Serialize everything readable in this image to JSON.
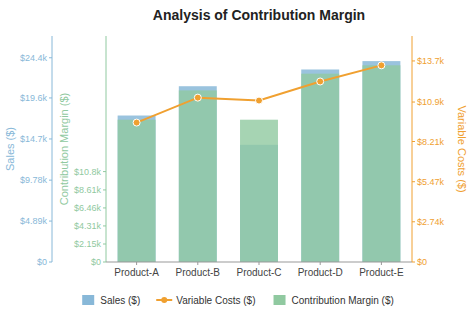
{
  "chart_data": {
    "type": "bar",
    "title": "Analysis of Contribution Margin",
    "categories": [
      "Product-A",
      "Product-B",
      "Product-C",
      "Product-D",
      "Product-E"
    ],
    "series": [
      {
        "name": "Sales ($)",
        "type": "bar",
        "color": "#88b8d8",
        "axis": "y3",
        "values": [
          17500,
          21000,
          14000,
          23000,
          24000
        ]
      },
      {
        "name": "Variable Costs ($)",
        "type": "line",
        "marker": "circle",
        "color": "#f0a030",
        "axis": "y2",
        "values": [
          9500,
          11200,
          11000,
          12300,
          13400
        ]
      },
      {
        "name": "Contribution Margin ($)",
        "type": "bar",
        "color": "#90c9a0",
        "axis": "y",
        "values": [
          17000,
          20500,
          17000,
          22500,
          23500
        ]
      }
    ],
    "ylabel": "Contribution Margin ($)",
    "ylim": [
      0,
      27000
    ],
    "yticks": [
      {
        "value": 0,
        "label": "$0"
      },
      {
        "value": 2150,
        "label": "$2.15k"
      },
      {
        "value": 4310,
        "label": "$4.31k"
      },
      {
        "value": 6460,
        "label": "$6.46k"
      },
      {
        "value": 8610,
        "label": "$8.61k"
      },
      {
        "value": 10800,
        "label": "$10.8k"
      }
    ],
    "y2label": "Variable Costs ($)",
    "y2lim": [
      0,
      15400
    ],
    "y2ticks": [
      {
        "value": 0,
        "label": "$0"
      },
      {
        "value": 2740,
        "label": "$2.74k"
      },
      {
        "value": 5470,
        "label": "$5.47k"
      },
      {
        "value": 8210,
        "label": "$8.21k"
      },
      {
        "value": 10900,
        "label": "$10.9k"
      },
      {
        "value": 13700,
        "label": "$13.7k"
      }
    ],
    "y3label": "Sales ($)",
    "y3lim": [
      0,
      27000
    ],
    "y3ticks": [
      {
        "value": 0,
        "label": "$0"
      },
      {
        "value": 4890,
        "label": "$4.89k"
      },
      {
        "value": 9780,
        "label": "$9.78k"
      },
      {
        "value": 14700,
        "label": "$14.7k"
      },
      {
        "value": 19600,
        "label": "$19.6k"
      },
      {
        "value": 24400,
        "label": "$24.4k"
      }
    ],
    "grid": false,
    "legend": "bottom"
  }
}
